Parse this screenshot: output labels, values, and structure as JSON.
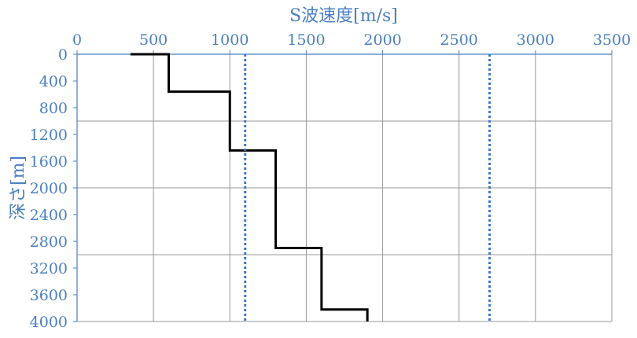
{
  "chart_data": {
    "type": "line",
    "x_axis": {
      "label": "S波速度[m/s]",
      "position": "top",
      "range": [
        0,
        3500
      ],
      "ticks": [
        0,
        500,
        1000,
        1500,
        2000,
        2500,
        3000,
        3500
      ]
    },
    "y_axis": {
      "label": "深さ[m]",
      "inverted": true,
      "range": [
        0,
        4000
      ],
      "ticks": [
        0,
        400,
        800,
        1200,
        1600,
        2000,
        2400,
        2800,
        3200,
        3600,
        4000
      ]
    },
    "grid": {
      "vertical_at": [
        500,
        1000,
        1500,
        2000,
        2500,
        3000,
        3500
      ],
      "horizontal_at": [
        1000,
        2000,
        3000,
        4000
      ]
    },
    "series": [
      {
        "style": "solid",
        "color": "#000000",
        "shape": "step",
        "points": [
          [
            350,
            0
          ],
          [
            600,
            0
          ],
          [
            600,
            560
          ],
          [
            1000,
            560
          ],
          [
            1000,
            1440
          ],
          [
            1300,
            1440
          ],
          [
            1300,
            2900
          ],
          [
            1600,
            2900
          ],
          [
            1600,
            3820
          ],
          [
            1900,
            3820
          ],
          [
            1900,
            4000
          ]
        ]
      },
      {
        "style": "dotted",
        "color": "#3a78c9",
        "shape": "vertical",
        "x": 1100,
        "y_range": [
          0,
          4000
        ]
      },
      {
        "style": "dotted",
        "color": "#3a78c9",
        "shape": "vertical",
        "x": 2700,
        "y_range": [
          0,
          4000
        ]
      }
    ]
  }
}
